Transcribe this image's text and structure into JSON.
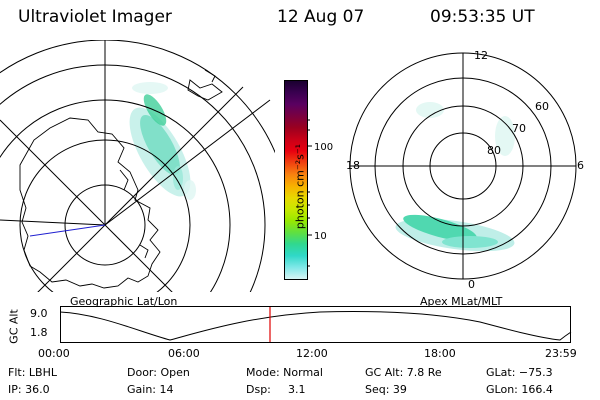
{
  "header": {
    "instrument": "Ultraviolet Imager",
    "date": "12 Aug 07",
    "time": "09:53:35 UT"
  },
  "colorbar": {
    "unit_label": "photon cm⁻²s⁻¹",
    "ticks": [
      "100",
      "10"
    ],
    "colors": [
      "#1a0030",
      "#3a0050",
      "#5a0060",
      "#7a0040",
      "#9a0020",
      "#c80018",
      "#e80010",
      "#f04010",
      "#f88010",
      "#f8b000",
      "#e8d800",
      "#c8e800",
      "#98e800",
      "#60e040",
      "#30d890",
      "#30d8c8",
      "#80e8e8",
      "#d8f4f4"
    ]
  },
  "left_map": {
    "label": "Geographic Lat/Lon"
  },
  "right_map": {
    "label": "Apex MLat/MLT",
    "mlt_labels": {
      "top": "12",
      "bottom": "0",
      "left": "18",
      "right": "6"
    },
    "lat_labels": [
      "60",
      "70",
      "80"
    ]
  },
  "alt_plot": {
    "ylabel": "GC Alt",
    "y_ticks": [
      "9.0",
      "1.8"
    ],
    "x_ticks": [
      "00:00",
      "06:00",
      "12:00",
      "18:00",
      "23:59"
    ],
    "marker_color": "#e00000"
  },
  "info": {
    "row1": {
      "filter": "Flt: LBHL",
      "door": "Door: Open",
      "mode": "Mode: Normal",
      "gc_alt": "GC Alt: 7.8 Re",
      "glat": "GLat: −75.3"
    },
    "row2": {
      "ip": "IP: 36.0",
      "gain": "Gain: 14",
      "dsp_label": "Dsp:",
      "dsp_value": "3.1",
      "seq": "Seq: 39",
      "glon": "GLon: 166.4"
    }
  }
}
